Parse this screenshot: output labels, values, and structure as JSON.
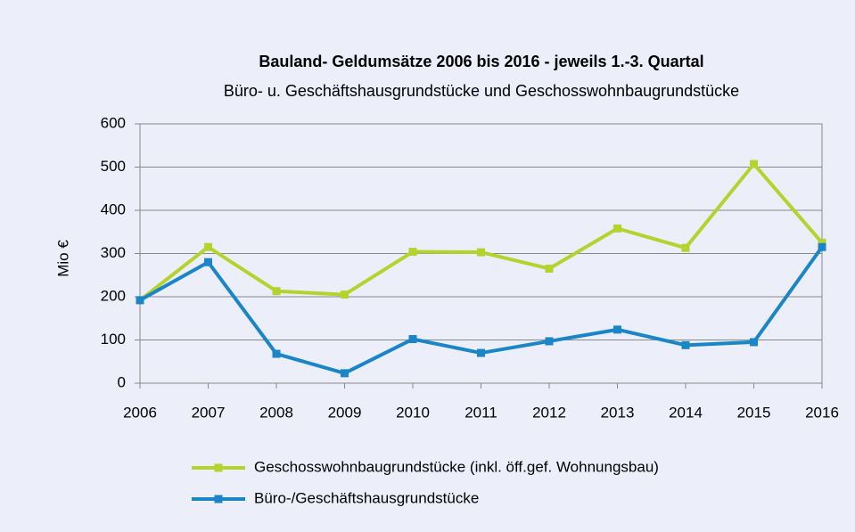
{
  "chart_data": {
    "type": "line",
    "title": "Bauland- Geldumsätze 2006 bis 2016 - jeweils 1.-3. Quartal",
    "subtitle": "Büro- u. Geschäftshausgrundstücke und Geschosswohnbaugrundstücke",
    "y_label": "Mio €",
    "x": [
      2006,
      2007,
      2008,
      2009,
      2010,
      2011,
      2012,
      2013,
      2014,
      2015,
      2016
    ],
    "xlim": [
      2006,
      2016
    ],
    "xticks": [
      2006,
      2007,
      2008,
      2009,
      2010,
      2011,
      2012,
      2013,
      2014,
      2015,
      2016
    ],
    "ylim": [
      0,
      600
    ],
    "yticks": [
      0,
      100,
      200,
      300,
      400,
      500,
      600
    ],
    "grid": true,
    "legend": "bottom",
    "series": [
      {
        "name": "Geschosswohnbaugrundstücke (inkl. öff.gef. Wohnungsbau)",
        "color": "#b5d32c",
        "values": [
          192,
          315,
          213,
          205,
          304,
          303,
          265,
          358,
          313,
          507,
          325
        ]
      },
      {
        "name": "Büro-/Geschäftshausgrundstücke",
        "color": "#1a86c8",
        "values": [
          192,
          280,
          68,
          23,
          102,
          70,
          97,
          124,
          88,
          95,
          315
        ]
      }
    ]
  }
}
